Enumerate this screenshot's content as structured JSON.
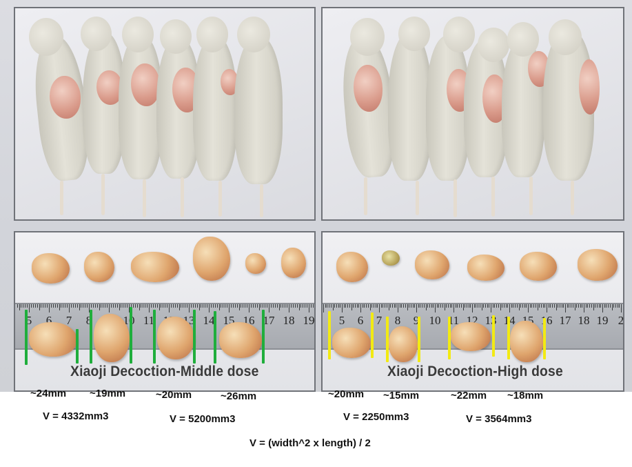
{
  "panels": {
    "middle_dose": {
      "caption": "Xiaoji Decoction-Middle dose"
    },
    "high_dose": {
      "caption": "Xiaoji Decoction-High dose"
    }
  },
  "ruler": {
    "left_numbers": [
      "5",
      "6",
      "7",
      "8",
      "9",
      "10",
      "11",
      "12",
      "13",
      "14",
      "15",
      "16",
      "17",
      "18",
      "19"
    ],
    "right_numbers": [
      "5",
      "6",
      "7",
      "8",
      "9",
      "10",
      "11",
      "12",
      "13",
      "14",
      "15",
      "16",
      "17",
      "18",
      "19",
      "2"
    ]
  },
  "measurements": {
    "middle": [
      "~24mm",
      "~19mm",
      "~20mm",
      "~26mm"
    ],
    "high": [
      "~20mm",
      "~15mm",
      "~22mm",
      "~18mm"
    ]
  },
  "volumes": {
    "middle_1": "V = 4332mm3",
    "middle_2": "V = 5200mm3",
    "high_1": "V = 2250mm3",
    "high_2": "V = 3564mm3"
  },
  "formula": "V = (width^2 x length) / 2",
  "colors": {
    "middle_markers": "#1fae3c",
    "high_markers": "#f2ea13"
  }
}
